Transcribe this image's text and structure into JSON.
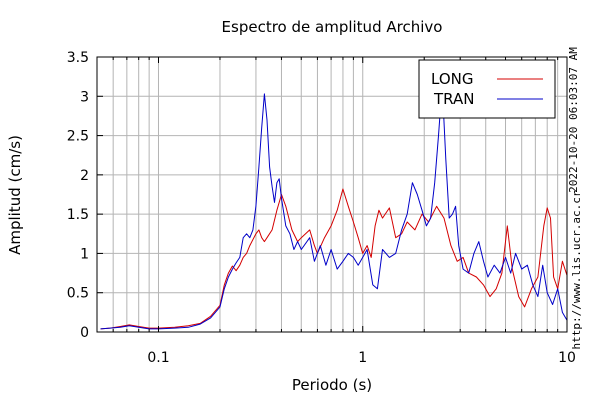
{
  "chart_data": {
    "type": "line",
    "title": "Espectro de amplitud Archivo",
    "xlabel": "Periodo (s)",
    "ylabel": "Amplitud (cm/s)",
    "x_scale": "log",
    "xlim": [
      0.05,
      10
    ],
    "ylim": [
      0,
      3.5
    ],
    "x_ticks": [
      {
        "value": 0.1,
        "label": "0.1"
      },
      {
        "value": 1,
        "label": "1"
      },
      {
        "value": 10,
        "label": "10"
      }
    ],
    "y_ticks": [
      {
        "value": 0,
        "label": "0"
      },
      {
        "value": 0.5,
        "label": "0.5"
      },
      {
        "value": 1,
        "label": "1"
      },
      {
        "value": 1.5,
        "label": "1.5"
      },
      {
        "value": 2,
        "label": "2"
      },
      {
        "value": 2.5,
        "label": "2.5"
      },
      {
        "value": 3,
        "label": "3"
      },
      {
        "value": 3.5,
        "label": "3.5"
      }
    ],
    "grid": true,
    "legend_position": "top-right",
    "side_text_right": "2022-10-20 06:03:07 AM",
    "side_text_bottom": "http://www.lis.ucr.ac.cr",
    "series": [
      {
        "name": "LONG",
        "color": "#d40000",
        "points": [
          [
            0.052,
            0.04
          ],
          [
            0.058,
            0.05
          ],
          [
            0.065,
            0.07
          ],
          [
            0.072,
            0.09
          ],
          [
            0.08,
            0.07
          ],
          [
            0.09,
            0.05
          ],
          [
            0.1,
            0.05
          ],
          [
            0.12,
            0.06
          ],
          [
            0.14,
            0.08
          ],
          [
            0.16,
            0.11
          ],
          [
            0.18,
            0.2
          ],
          [
            0.2,
            0.34
          ],
          [
            0.21,
            0.6
          ],
          [
            0.22,
            0.75
          ],
          [
            0.23,
            0.84
          ],
          [
            0.24,
            0.78
          ],
          [
            0.25,
            0.85
          ],
          [
            0.26,
            0.95
          ],
          [
            0.27,
            1.0
          ],
          [
            0.28,
            1.1
          ],
          [
            0.3,
            1.25
          ],
          [
            0.31,
            1.3
          ],
          [
            0.32,
            1.2
          ],
          [
            0.33,
            1.15
          ],
          [
            0.34,
            1.2
          ],
          [
            0.36,
            1.3
          ],
          [
            0.38,
            1.55
          ],
          [
            0.4,
            1.75
          ],
          [
            0.42,
            1.6
          ],
          [
            0.45,
            1.3
          ],
          [
            0.48,
            1.15
          ],
          [
            0.5,
            1.2
          ],
          [
            0.55,
            1.3
          ],
          [
            0.58,
            1.1
          ],
          [
            0.6,
            1.0
          ],
          [
            0.65,
            1.2
          ],
          [
            0.7,
            1.35
          ],
          [
            0.75,
            1.55
          ],
          [
            0.8,
            1.82
          ],
          [
            0.85,
            1.6
          ],
          [
            0.9,
            1.4
          ],
          [
            0.95,
            1.2
          ],
          [
            1.0,
            1.0
          ],
          [
            1.05,
            1.1
          ],
          [
            1.1,
            0.95
          ],
          [
            1.15,
            1.35
          ],
          [
            1.2,
            1.55
          ],
          [
            1.25,
            1.45
          ],
          [
            1.35,
            1.58
          ],
          [
            1.45,
            1.2
          ],
          [
            1.55,
            1.25
          ],
          [
            1.65,
            1.4
          ],
          [
            1.8,
            1.3
          ],
          [
            1.95,
            1.5
          ],
          [
            2.1,
            1.4
          ],
          [
            2.3,
            1.6
          ],
          [
            2.5,
            1.45
          ],
          [
            2.7,
            1.1
          ],
          [
            2.9,
            0.9
          ],
          [
            3.1,
            0.95
          ],
          [
            3.3,
            0.75
          ],
          [
            3.6,
            0.7
          ],
          [
            3.9,
            0.6
          ],
          [
            4.2,
            0.45
          ],
          [
            4.5,
            0.55
          ],
          [
            4.8,
            0.75
          ],
          [
            5.1,
            1.35
          ],
          [
            5.4,
            0.8
          ],
          [
            5.8,
            0.45
          ],
          [
            6.2,
            0.32
          ],
          [
            6.7,
            0.55
          ],
          [
            7.2,
            0.7
          ],
          [
            7.7,
            1.35
          ],
          [
            8.0,
            1.58
          ],
          [
            8.3,
            1.45
          ],
          [
            8.6,
            0.7
          ],
          [
            9.0,
            0.55
          ],
          [
            9.5,
            0.9
          ],
          [
            10.0,
            0.72
          ]
        ]
      },
      {
        "name": "TRAN",
        "color": "#0000c8",
        "points": [
          [
            0.052,
            0.04
          ],
          [
            0.058,
            0.05
          ],
          [
            0.065,
            0.06
          ],
          [
            0.072,
            0.08
          ],
          [
            0.08,
            0.06
          ],
          [
            0.09,
            0.04
          ],
          [
            0.1,
            0.04
          ],
          [
            0.12,
            0.05
          ],
          [
            0.14,
            0.06
          ],
          [
            0.16,
            0.1
          ],
          [
            0.18,
            0.18
          ],
          [
            0.2,
            0.32
          ],
          [
            0.21,
            0.55
          ],
          [
            0.22,
            0.7
          ],
          [
            0.23,
            0.8
          ],
          [
            0.24,
            0.88
          ],
          [
            0.25,
            0.95
          ],
          [
            0.26,
            1.2
          ],
          [
            0.27,
            1.25
          ],
          [
            0.28,
            1.2
          ],
          [
            0.29,
            1.3
          ],
          [
            0.3,
            1.6
          ],
          [
            0.31,
            2.1
          ],
          [
            0.32,
            2.6
          ],
          [
            0.33,
            3.03
          ],
          [
            0.34,
            2.7
          ],
          [
            0.35,
            2.1
          ],
          [
            0.36,
            1.85
          ],
          [
            0.37,
            1.65
          ],
          [
            0.38,
            1.9
          ],
          [
            0.39,
            1.95
          ],
          [
            0.4,
            1.7
          ],
          [
            0.42,
            1.35
          ],
          [
            0.44,
            1.25
          ],
          [
            0.46,
            1.05
          ],
          [
            0.48,
            1.15
          ],
          [
            0.5,
            1.05
          ],
          [
            0.55,
            1.2
          ],
          [
            0.58,
            0.9
          ],
          [
            0.62,
            1.1
          ],
          [
            0.66,
            0.85
          ],
          [
            0.7,
            1.05
          ],
          [
            0.75,
            0.8
          ],
          [
            0.8,
            0.9
          ],
          [
            0.85,
            1.0
          ],
          [
            0.9,
            0.95
          ],
          [
            0.95,
            0.85
          ],
          [
            1.0,
            0.95
          ],
          [
            1.05,
            1.05
          ],
          [
            1.12,
            0.6
          ],
          [
            1.18,
            0.55
          ],
          [
            1.25,
            1.05
          ],
          [
            1.35,
            0.95
          ],
          [
            1.45,
            1.0
          ],
          [
            1.55,
            1.3
          ],
          [
            1.65,
            1.5
          ],
          [
            1.75,
            1.9
          ],
          [
            1.85,
            1.75
          ],
          [
            1.95,
            1.55
          ],
          [
            2.05,
            1.35
          ],
          [
            2.15,
            1.45
          ],
          [
            2.25,
            1.9
          ],
          [
            2.35,
            2.5
          ],
          [
            2.45,
            3.15
          ],
          [
            2.55,
            2.2
          ],
          [
            2.65,
            1.45
          ],
          [
            2.75,
            1.5
          ],
          [
            2.85,
            1.6
          ],
          [
            2.95,
            1.1
          ],
          [
            3.1,
            0.8
          ],
          [
            3.3,
            0.75
          ],
          [
            3.5,
            1.0
          ],
          [
            3.7,
            1.15
          ],
          [
            3.9,
            0.9
          ],
          [
            4.1,
            0.7
          ],
          [
            4.4,
            0.85
          ],
          [
            4.7,
            0.75
          ],
          [
            5.0,
            0.95
          ],
          [
            5.3,
            0.75
          ],
          [
            5.6,
            1.0
          ],
          [
            6.0,
            0.8
          ],
          [
            6.4,
            0.85
          ],
          [
            6.8,
            0.6
          ],
          [
            7.2,
            0.45
          ],
          [
            7.6,
            0.85
          ],
          [
            8.0,
            0.5
          ],
          [
            8.5,
            0.35
          ],
          [
            9.0,
            0.55
          ],
          [
            9.5,
            0.25
          ],
          [
            10.0,
            0.15
          ]
        ]
      }
    ]
  }
}
